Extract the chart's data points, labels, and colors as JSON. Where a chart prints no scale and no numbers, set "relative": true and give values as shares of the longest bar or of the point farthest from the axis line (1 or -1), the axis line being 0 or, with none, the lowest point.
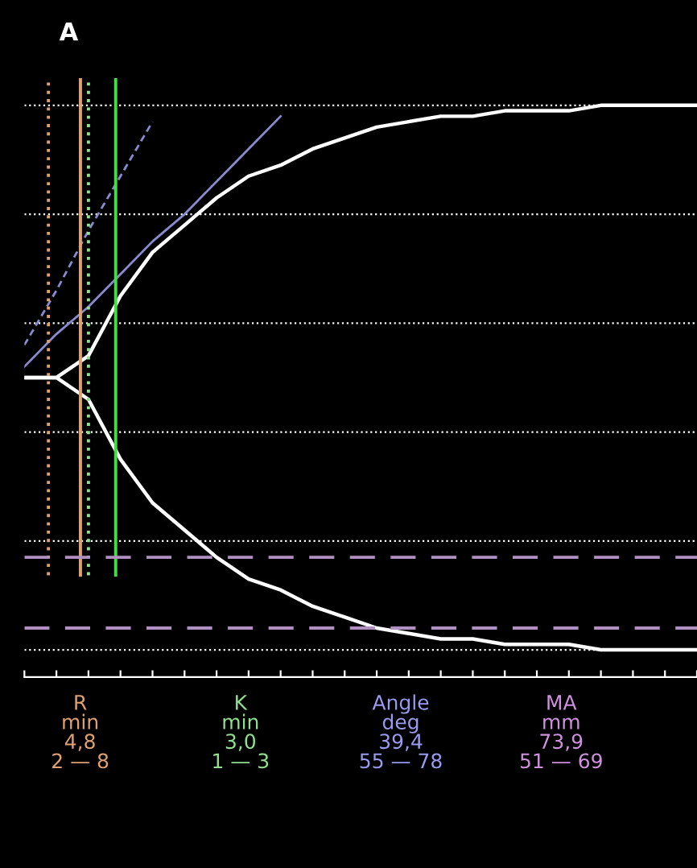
{
  "chart_data": {
    "type": "line",
    "title": "A",
    "relative": true,
    "categories": [
      null,
      null,
      null,
      null,
      null,
      null,
      null,
      null,
      null,
      null,
      null,
      null,
      null,
      null,
      null,
      null,
      null,
      null,
      null,
      null,
      null,
      null
    ],
    "series": [
      {
        "color": "#ffffff",
        "values": [
          0.5,
          0.5,
          0.54,
          0.65,
          0.73,
          0.78,
          0.83,
          0.87,
          0.89,
          0.92,
          0.94,
          0.96,
          0.97,
          0.98,
          0.98,
          0.99,
          0.99,
          0.99,
          1.0,
          1.0,
          1.0,
          1.0
        ]
      },
      {
        "color": "#ffffff",
        "values": [
          0.5,
          0.5,
          0.46,
          0.35,
          0.27,
          0.22,
          0.17,
          0.13,
          0.11,
          0.08,
          0.06,
          0.04,
          0.03,
          0.02,
          0.02,
          0.01,
          0.01,
          0.01,
          0.0,
          0.0,
          0.0,
          0.0
        ]
      },
      {
        "type": "line",
        "color": "#8a8ad0",
        "values": [
          0.52,
          0.58,
          0.63,
          0.69,
          0.75,
          0.8,
          0.86,
          0.92,
          0.98,
          null,
          null,
          null,
          null,
          null,
          null,
          null,
          null,
          null,
          null,
          null,
          null,
          null
        ]
      },
      {
        "type": "line",
        "color": "#8a8ad0",
        "line_style": "dashed",
        "values": [
          0.56,
          0.66,
          0.77,
          0.87,
          0.97,
          null,
          null,
          null,
          null,
          null,
          null,
          null,
          null,
          null,
          null,
          null,
          null,
          null,
          null,
          null,
          null,
          null
        ]
      }
    ],
    "ref_lines": [
      {
        "axis": "y",
        "value": 0.17,
        "color": "#b090c0",
        "line_style": "dashed"
      },
      {
        "axis": "y",
        "value": 0.04,
        "color": "#b090c0",
        "line_style": "dashed"
      }
    ],
    "grid": "y",
    "annotations": [
      "R\nmin\n4,8\n2 — 8",
      "K\nmin\n3,0\n1 — 3",
      "Angle\ndeg\n39,4\n55 — 78",
      "MA\nmm\n73,9\n51 — 69"
    ]
  }
}
